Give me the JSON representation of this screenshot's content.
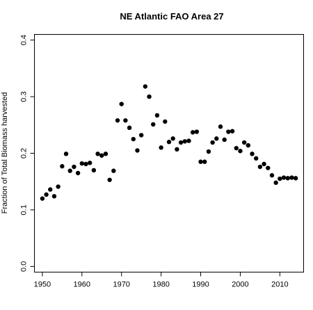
{
  "chart_data": {
    "type": "scatter",
    "title": "NE Atlantic FAO Area 27",
    "xlabel": "",
    "ylabel": "Fraction of Total Biomass harvested",
    "xlim": [
      1948,
      2016
    ],
    "ylim": [
      -0.01,
      0.41
    ],
    "x_ticks": [
      1950,
      1960,
      1970,
      1980,
      1990,
      2000,
      2010
    ],
    "y_ticks": [
      0.0,
      0.1,
      0.2,
      0.3,
      0.4
    ],
    "x_tick_labels": [
      "1950",
      "1960",
      "1970",
      "1980",
      "1990",
      "2000",
      "2010"
    ],
    "y_tick_labels": [
      "0.0",
      "0.1",
      "0.2",
      "0.3",
      "0.4"
    ],
    "grid": false,
    "marker_color": "#000000",
    "x": [
      1950,
      1951,
      1952,
      1953,
      1954,
      1955,
      1956,
      1957,
      1958,
      1959,
      1960,
      1961,
      1962,
      1963,
      1964,
      1965,
      1966,
      1967,
      1968,
      1969,
      1970,
      1971,
      1972,
      1973,
      1974,
      1975,
      1976,
      1977,
      1978,
      1979,
      1980,
      1981,
      1982,
      1983,
      1984,
      1985,
      1986,
      1987,
      1988,
      1989,
      1990,
      1991,
      1992,
      1993,
      1994,
      1995,
      1996,
      1997,
      1998,
      1999,
      2000,
      2001,
      2002,
      2003,
      2004,
      2005,
      2006,
      2007,
      2008,
      2009,
      2010,
      2011,
      2012,
      2013,
      2014
    ],
    "y": [
      0.12,
      0.127,
      0.136,
      0.124,
      0.141,
      0.177,
      0.199,
      0.169,
      0.176,
      0.165,
      0.182,
      0.181,
      0.183,
      0.17,
      0.199,
      0.196,
      0.199,
      0.153,
      0.169,
      0.258,
      0.287,
      0.258,
      0.245,
      0.225,
      0.205,
      0.232,
      0.318,
      0.3,
      0.251,
      0.267,
      0.21,
      0.256,
      0.22,
      0.226,
      0.207,
      0.219,
      0.221,
      0.222,
      0.237,
      0.238,
      0.185,
      0.185,
      0.203,
      0.219,
      0.226,
      0.247,
      0.224,
      0.238,
      0.239,
      0.209,
      0.204,
      0.219,
      0.214,
      0.199,
      0.191,
      0.176,
      0.181,
      0.174,
      0.161,
      0.148,
      0.155,
      0.157,
      0.156,
      0.157,
      0.156
    ]
  }
}
